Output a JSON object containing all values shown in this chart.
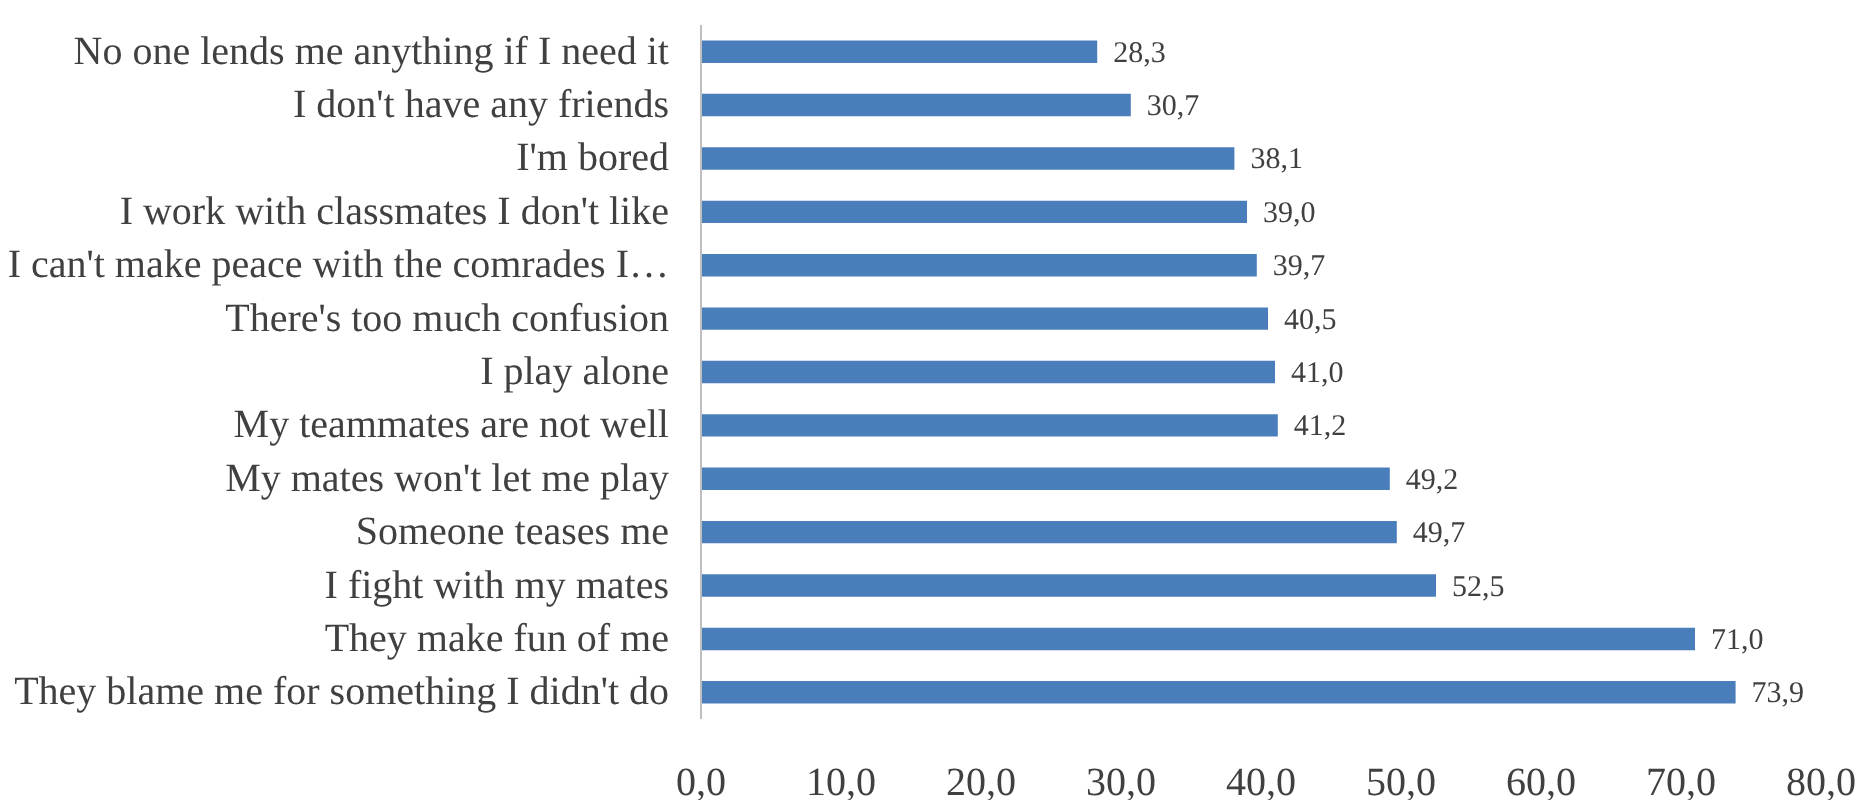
{
  "chart_data": {
    "type": "bar",
    "orientation": "horizontal",
    "color": "#4a7ebb",
    "categories": [
      "No one lends me anything if I need it",
      "I don't have any friends",
      "I'm bored",
      "I work with classmates I don't like",
      "I can't make peace with the comrades I…",
      "There's too much confusion",
      "I play alone",
      "My teammates are not well",
      "My mates won't let me play",
      "Someone teases me",
      "I fight with my mates",
      "They make fun of me",
      "They blame me for something I didn't do"
    ],
    "values": [
      28.3,
      30.7,
      38.1,
      39.0,
      39.7,
      40.5,
      41.0,
      41.2,
      49.2,
      49.7,
      52.5,
      71.0,
      73.9
    ],
    "value_labels": [
      "28,3",
      "30,7",
      "38,1",
      "39,0",
      "39,7",
      "40,5",
      "41,0",
      "41,2",
      "49,2",
      "49,7",
      "52,5",
      "71,0",
      "73,9"
    ],
    "xlim": [
      0,
      80
    ],
    "xticks": [
      {
        "value": 0,
        "label": "0,0"
      },
      {
        "value": 10,
        "label": "10,0"
      },
      {
        "value": 20,
        "label": "20,0"
      },
      {
        "value": 30,
        "label": "30,0"
      },
      {
        "value": 40,
        "label": "40,0"
      },
      {
        "value": 50,
        "label": "50,0"
      },
      {
        "value": 60,
        "label": "60,0"
      },
      {
        "value": 70,
        "label": "70,0"
      },
      {
        "value": 80,
        "label": "80,0"
      }
    ]
  }
}
